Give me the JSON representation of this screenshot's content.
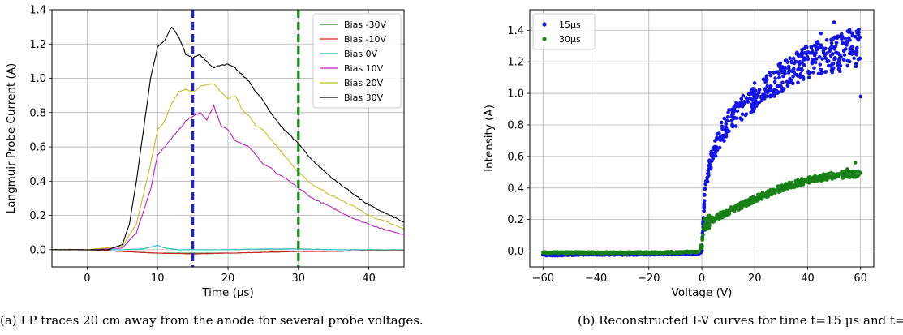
{
  "chart_data": [
    {
      "type": "line",
      "xlabel": "Time (μs)",
      "ylabel": "Langmuir Probe Current (A)",
      "xlim": [
        -5,
        45
      ],
      "ylim": [
        -0.1,
        1.4
      ],
      "xticks": [
        0,
        10,
        20,
        30,
        40
      ],
      "yticks": [
        0.0,
        0.2,
        0.4,
        0.6,
        0.8,
        1.0,
        1.2,
        1.4
      ],
      "grid": true,
      "legend_position": "top-right",
      "vlines": [
        {
          "x": 15,
          "color": "#1f1fe0",
          "style": "dashed"
        },
        {
          "x": 30,
          "color": "#1a8a1a",
          "style": "dashed"
        }
      ],
      "series": [
        {
          "name": "Bias -30V",
          "color": "#1a7a1a",
          "x": [
            -5,
            0,
            5,
            10,
            15,
            20,
            25,
            30,
            35,
            40,
            45
          ],
          "y": [
            0.0,
            0.0,
            -0.01,
            -0.02,
            -0.02,
            -0.02,
            -0.015,
            -0.01,
            -0.01,
            -0.005,
            -0.005
          ]
        },
        {
          "name": "Bias -10V",
          "color": "#d62020",
          "x": [
            -5,
            0,
            5,
            10,
            15,
            20,
            25,
            30,
            35,
            40,
            45
          ],
          "y": [
            0.0,
            0.0,
            -0.01,
            -0.02,
            -0.025,
            -0.02,
            -0.015,
            -0.01,
            -0.01,
            -0.005,
            -0.005
          ]
        },
        {
          "name": "Bias 0V",
          "color": "#20c0c0",
          "x": [
            -5,
            0,
            5,
            8,
            10,
            11,
            13,
            15,
            20,
            25,
            30,
            35,
            40,
            45
          ],
          "y": [
            0.0,
            0.0,
            0.0,
            0.005,
            0.025,
            0.01,
            0.0,
            0.0,
            0.0,
            0.005,
            0.005,
            0.0,
            0.0,
            0.0
          ]
        },
        {
          "name": "Bias 10V",
          "color": "#c020c0",
          "x": [
            -5,
            0,
            5,
            7,
            9,
            10,
            11,
            12,
            13,
            14,
            15,
            16,
            17,
            18,
            19,
            20,
            21,
            22,
            23,
            24,
            25,
            26,
            27,
            28,
            30,
            32,
            35,
            38,
            40,
            42,
            45
          ],
          "y": [
            0.0,
            0.0,
            0.01,
            0.1,
            0.35,
            0.55,
            0.6,
            0.65,
            0.7,
            0.75,
            0.78,
            0.8,
            0.76,
            0.84,
            0.72,
            0.7,
            0.64,
            0.62,
            0.6,
            0.55,
            0.5,
            0.48,
            0.44,
            0.42,
            0.36,
            0.3,
            0.24,
            0.18,
            0.15,
            0.12,
            0.09
          ]
        },
        {
          "name": "Bias 20V",
          "color": "#c0c020",
          "x": [
            -5,
            0,
            5,
            7,
            9,
            10,
            11,
            12,
            13,
            14,
            15,
            16,
            17,
            18,
            19,
            20,
            21,
            22,
            23,
            24,
            25,
            26,
            28,
            30,
            32,
            35,
            38,
            40,
            42,
            45
          ],
          "y": [
            0.0,
            0.0,
            0.02,
            0.15,
            0.5,
            0.7,
            0.75,
            0.85,
            0.92,
            0.94,
            0.92,
            0.95,
            0.96,
            0.97,
            0.92,
            0.88,
            0.9,
            0.82,
            0.78,
            0.72,
            0.7,
            0.65,
            0.55,
            0.45,
            0.38,
            0.31,
            0.25,
            0.2,
            0.17,
            0.12
          ]
        },
        {
          "name": "Bias 30V",
          "color": "#000000",
          "x": [
            -5,
            0,
            3,
            5,
            6,
            7,
            8,
            9,
            10,
            11,
            12,
            13,
            14,
            15,
            16,
            17,
            18,
            19,
            20,
            21,
            22,
            23,
            24,
            25,
            26,
            28,
            30,
            32,
            35,
            38,
            40,
            42,
            45
          ],
          "y": [
            0.0,
            0.0,
            0.0,
            0.03,
            0.15,
            0.4,
            0.7,
            1.0,
            1.18,
            1.22,
            1.3,
            1.24,
            1.14,
            1.12,
            1.14,
            1.1,
            1.06,
            1.08,
            1.08,
            1.06,
            1.02,
            0.98,
            0.92,
            0.87,
            0.8,
            0.7,
            0.62,
            0.52,
            0.41,
            0.32,
            0.26,
            0.22,
            0.16
          ]
        }
      ]
    },
    {
      "type": "scatter",
      "xlabel": "Voltage (V)",
      "ylabel": "Intensity (A)",
      "xlim": [
        -65,
        65
      ],
      "ylim": [
        -0.1,
        1.53
      ],
      "xticks": [
        -60,
        -40,
        -20,
        0,
        20,
        40,
        60
      ],
      "yticks": [
        0.0,
        0.2,
        0.4,
        0.6,
        0.8,
        1.0,
        1.2,
        1.4
      ],
      "grid": true,
      "legend_position": "top-left",
      "series": [
        {
          "name": "15μs",
          "color": "#1414e6",
          "trend": [
            [
              -60,
              -0.025
            ],
            [
              -40,
              -0.02
            ],
            [
              -20,
              -0.02
            ],
            [
              -1,
              -0.015
            ],
            [
              0,
              0.0
            ],
            [
              1,
              0.35
            ],
            [
              3,
              0.55
            ],
            [
              6,
              0.7
            ],
            [
              10,
              0.82
            ],
            [
              15,
              0.9
            ],
            [
              20,
              0.98
            ],
            [
              30,
              1.1
            ],
            [
              40,
              1.2
            ],
            [
              50,
              1.25
            ],
            [
              60,
              1.3
            ]
          ],
          "outliers": [
            [
              50,
              1.45
            ],
            [
              60,
              0.98
            ],
            [
              58,
              1.36
            ],
            [
              45,
              1.38
            ],
            [
              55,
              1.33
            ]
          ]
        },
        {
          "name": "30μs",
          "color": "#178017",
          "trend": [
            [
              -60,
              -0.01
            ],
            [
              -40,
              -0.01
            ],
            [
              -20,
              -0.01
            ],
            [
              -1,
              -0.005
            ],
            [
              0,
              0.05
            ],
            [
              1,
              0.17
            ],
            [
              5,
              0.21
            ],
            [
              10,
              0.25
            ],
            [
              20,
              0.33
            ],
            [
              30,
              0.4
            ],
            [
              40,
              0.45
            ],
            [
              50,
              0.48
            ],
            [
              60,
              0.49
            ]
          ],
          "outliers": [
            [
              58,
              0.56
            ],
            [
              55,
              0.52
            ]
          ]
        }
      ]
    }
  ],
  "captions": {
    "a": "(a) LP traces 20 cm away from the anode for several probe voltages.",
    "b": "(b) Reconstructed I-V curves for time t=15 μs and t=30 μs."
  },
  "legend_b_labels": [
    "15μs",
    "30μs"
  ]
}
